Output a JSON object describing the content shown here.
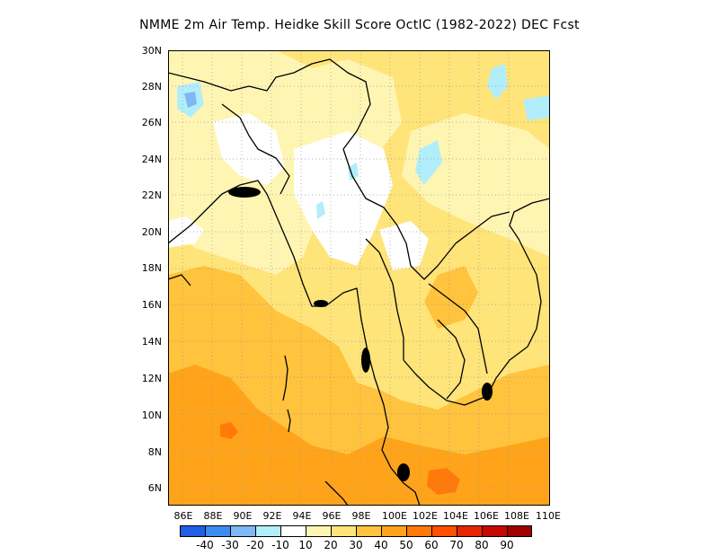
{
  "title": "NMME  2m Air Temp. Heidke Skill Score OctIC (1982-2022) DEC Fcst",
  "lat_ticks": [
    "30N",
    "28N",
    "26N",
    "24N",
    "22N",
    "20N",
    "18N",
    "16N",
    "14N",
    "12N",
    "10N",
    "8N",
    "6N"
  ],
  "lon_ticks": [
    "86E",
    "88E",
    "90E",
    "92E",
    "94E",
    "96E",
    "98E",
    "100E",
    "102E",
    "104E",
    "106E",
    "108E",
    "110E"
  ],
  "colorbar": {
    "colors": [
      "#1f5fe6",
      "#3b8cf0",
      "#7eb8f5",
      "#b2eefa",
      "#ffffff",
      "#fff5b3",
      "#ffe47a",
      "#ffc33d",
      "#ffa41a",
      "#ff7a0a",
      "#ff4f00",
      "#e62600",
      "#c40a00",
      "#a00000"
    ],
    "labels": [
      "-40",
      "-30",
      "-20",
      "-10",
      "10",
      "20",
      "30",
      "40",
      "50",
      "60",
      "70",
      "80",
      "90"
    ]
  },
  "legend_colors": {
    "white": "#ffffff",
    "pale_yellow": "#fff5b3",
    "yellow": "#ffe47a",
    "light_orange": "#ffc33d",
    "orange": "#ffa41a",
    "dark_orange": "#ff7a0a",
    "red_orange": "#ff4f00",
    "light_blue": "#b2eefa",
    "blue": "#7eb8f5"
  }
}
